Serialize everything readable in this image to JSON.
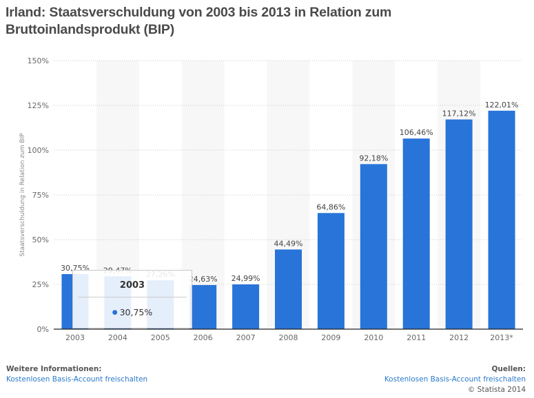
{
  "title": "Irland: Staatsverschuldung von 2003 bis 2013 in Relation zum Bruttoinlandsprodukt (BIP)",
  "colors": {
    "bar": "#2874d9",
    "band": "#f7f7f7",
    "link": "#2a7ac9"
  },
  "chart_data": {
    "type": "bar",
    "title": "Irland: Staatsverschuldung von 2003 bis 2013 in Relation zum Bruttoinlandsprodukt (BIP)",
    "xlabel": "",
    "ylabel": "Staatsverschuldung in Relation zum BIP",
    "categories": [
      "2003",
      "2004",
      "2005",
      "2006",
      "2007",
      "2008",
      "2009",
      "2010",
      "2011",
      "2012",
      "2013*"
    ],
    "values": [
      30.75,
      29.47,
      27.26,
      24.63,
      24.99,
      44.49,
      64.86,
      92.18,
      106.46,
      117.12,
      122.01
    ],
    "value_labels": [
      "30,75%",
      "29,47%",
      "27,26%",
      "24,63%",
      "24,99%",
      "44,49%",
      "64,86%",
      "92,18%",
      "106,46%",
      "117,12%",
      "122,01%"
    ],
    "ylim": [
      0,
      150
    ],
    "yticks": [
      0,
      25,
      50,
      75,
      100,
      125,
      150
    ],
    "ytick_labels": [
      "0%",
      "25%",
      "50%",
      "75%",
      "100%",
      "125%",
      "150%"
    ],
    "grid": true,
    "legend": "none"
  },
  "tooltip": {
    "title": "2003",
    "value": "30,75%"
  },
  "footer": {
    "left_heading": "Weitere Informationen:",
    "left_link": "Kostenlosen Basis-Account freischalten",
    "right_heading": "Quellen:",
    "right_link": "Kostenlosen Basis-Account freischalten",
    "copyright": "© Statista 2014"
  }
}
